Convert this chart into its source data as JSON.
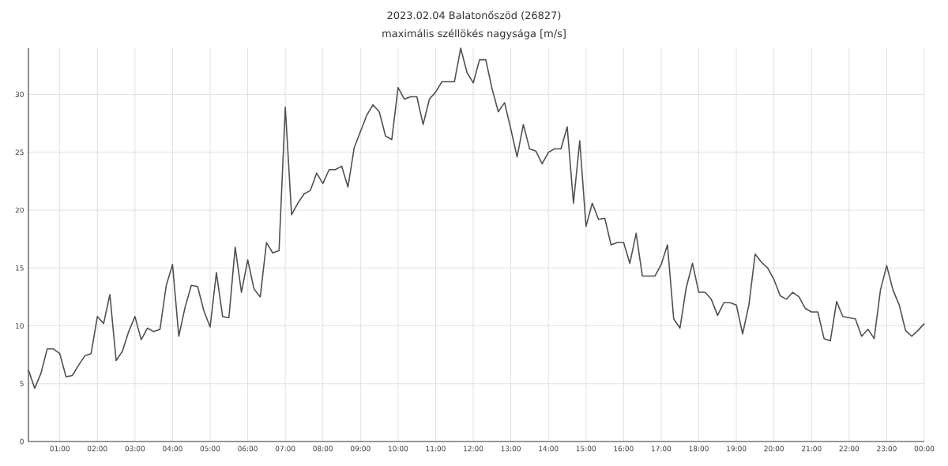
{
  "chart_data": {
    "type": "line",
    "title": "2023.02.04 Balatonőszöd (26827)",
    "subtitle": "maximális széllökés nagysága [m/s]",
    "x": [
      "2023-02-04T00:10",
      "2023-02-04T00:20",
      "2023-02-04T00:30",
      "2023-02-04T00:40",
      "2023-02-04T00:50",
      "2023-02-04T01:00",
      "2023-02-04T01:10",
      "2023-02-04T01:20",
      "2023-02-04T01:30",
      "2023-02-04T01:40",
      "2023-02-04T01:50",
      "2023-02-04T02:00",
      "2023-02-04T02:10",
      "2023-02-04T02:20",
      "2023-02-04T02:30",
      "2023-02-04T02:40",
      "2023-02-04T02:50",
      "2023-02-04T03:00",
      "2023-02-04T03:10",
      "2023-02-04T03:20",
      "2023-02-04T03:30",
      "2023-02-04T03:40",
      "2023-02-04T03:50",
      "2023-02-04T04:00",
      "2023-02-04T04:10",
      "2023-02-04T04:20",
      "2023-02-04T04:30",
      "2023-02-04T04:40",
      "2023-02-04T04:50",
      "2023-02-04T05:00",
      "2023-02-04T05:10",
      "2023-02-04T05:20",
      "2023-02-04T05:30",
      "2023-02-04T05:40",
      "2023-02-04T05:50",
      "2023-02-04T06:00",
      "2023-02-04T06:10",
      "2023-02-04T06:20",
      "2023-02-04T06:30",
      "2023-02-04T06:40",
      "2023-02-04T06:50",
      "2023-02-04T07:00",
      "2023-02-04T07:10",
      "2023-02-04T07:20",
      "2023-02-04T07:30",
      "2023-02-04T07:40",
      "2023-02-04T07:50",
      "2023-02-04T08:00",
      "2023-02-04T08:10",
      "2023-02-04T08:20",
      "2023-02-04T08:30",
      "2023-02-04T08:40",
      "2023-02-04T08:50",
      "2023-02-04T09:00",
      "2023-02-04T09:10",
      "2023-02-04T09:20",
      "2023-02-04T09:30",
      "2023-02-04T09:40",
      "2023-02-04T09:50",
      "2023-02-04T10:00",
      "2023-02-04T10:10",
      "2023-02-04T10:20",
      "2023-02-04T10:30",
      "2023-02-04T10:40",
      "2023-02-04T10:50",
      "2023-02-04T11:00",
      "2023-02-04T11:10",
      "2023-02-04T11:20",
      "2023-02-04T11:30",
      "2023-02-04T11:40",
      "2023-02-04T11:50",
      "2023-02-04T12:00",
      "2023-02-04T12:10",
      "2023-02-04T12:20",
      "2023-02-04T12:30",
      "2023-02-04T12:40",
      "2023-02-04T12:50",
      "2023-02-04T13:00",
      "2023-02-04T13:10",
      "2023-02-04T13:20",
      "2023-02-04T13:30",
      "2023-02-04T13:40",
      "2023-02-04T13:50",
      "2023-02-04T14:00",
      "2023-02-04T14:10",
      "2023-02-04T14:20",
      "2023-02-04T14:30",
      "2023-02-04T14:40",
      "2023-02-04T14:50",
      "2023-02-04T15:00",
      "2023-02-04T15:10",
      "2023-02-04T15:20",
      "2023-02-04T15:30",
      "2023-02-04T15:40",
      "2023-02-04T15:50",
      "2023-02-04T16:00",
      "2023-02-04T16:10",
      "2023-02-04T16:20",
      "2023-02-04T16:30",
      "2023-02-04T16:40",
      "2023-02-04T16:50",
      "2023-02-04T17:00",
      "2023-02-04T17:10",
      "2023-02-04T17:20",
      "2023-02-04T17:30",
      "2023-02-04T17:40",
      "2023-02-04T17:50",
      "2023-02-04T18:00",
      "2023-02-04T18:10",
      "2023-02-04T18:20",
      "2023-02-04T18:30",
      "2023-02-04T18:40",
      "2023-02-04T18:50",
      "2023-02-04T19:00",
      "2023-02-04T19:10",
      "2023-02-04T19:20",
      "2023-02-04T19:30",
      "2023-02-04T19:40",
      "2023-02-04T19:50",
      "2023-02-04T20:00",
      "2023-02-04T20:10",
      "2023-02-04T20:20",
      "2023-02-04T20:30",
      "2023-02-04T20:40",
      "2023-02-04T20:50",
      "2023-02-04T21:00",
      "2023-02-04T21:10",
      "2023-02-04T21:20",
      "2023-02-04T21:30",
      "2023-02-04T21:40",
      "2023-02-04T21:50",
      "2023-02-04T22:00",
      "2023-02-04T22:10",
      "2023-02-04T22:20",
      "2023-02-04T22:30",
      "2023-02-04T22:40",
      "2023-02-04T22:50",
      "2023-02-04T23:00",
      "2023-02-04T23:10",
      "2023-02-04T23:20",
      "2023-02-04T23:30",
      "2023-02-04T23:40",
      "2023-02-04T23:50",
      "2023-02-05T00:00"
    ],
    "series": [
      {
        "color": "#505050",
        "values": [
          6.2,
          4.6,
          5.9,
          8.0,
          8.0,
          7.6,
          5.6,
          5.7,
          6.6,
          7.4,
          7.6,
          10.8,
          10.2,
          12.7,
          7.0,
          7.8,
          9.5,
          10.8,
          8.8,
          9.8,
          9.5,
          9.7,
          13.5,
          15.3,
          9.1,
          11.6,
          13.5,
          13.4,
          11.3,
          9.9,
          14.6,
          10.8,
          10.7,
          16.8,
          12.9,
          15.7,
          13.2,
          12.5,
          17.2,
          16.3,
          16.5,
          28.9,
          19.6,
          20.6,
          21.4,
          21.7,
          23.2,
          22.3,
          23.5,
          23.5,
          23.8,
          22.0,
          25.4,
          26.8,
          28.2,
          29.1,
          28.5,
          26.4,
          26.1,
          30.6,
          29.6,
          29.8,
          29.8,
          27.4,
          29.6,
          30.2,
          31.1,
          31.1,
          31.1,
          34.0,
          31.9,
          31.0,
          33.0,
          33.0,
          30.5,
          28.5,
          29.3,
          27.0,
          24.6,
          27.4,
          25.3,
          25.1,
          24.0,
          25.0,
          25.3,
          25.3,
          27.2,
          20.6,
          26.0,
          18.6,
          20.6,
          19.2,
          19.3,
          17.0,
          17.2,
          17.2,
          15.4,
          18.0,
          14.3,
          14.3,
          14.3,
          15.3,
          17.0,
          10.6,
          9.8,
          13.3,
          15.4,
          12.9,
          12.9,
          12.3,
          10.9,
          12.0,
          12.0,
          11.8,
          9.3,
          11.8,
          16.2,
          15.5,
          15.0,
          14.0,
          12.6,
          12.3,
          12.9,
          12.5,
          11.5,
          11.2,
          11.2,
          8.9,
          8.7,
          12.1,
          10.8,
          10.7,
          10.6,
          9.1,
          9.7,
          8.9,
          13.1,
          15.2,
          13.1,
          11.8,
          9.6,
          9.1,
          9.6,
          10.2
        ]
      }
    ],
    "xlim": [
      "2023-02-04T00:10",
      "2023-02-05T00:00"
    ],
    "xticks": [
      {
        "value": "2023-02-04T01:00",
        "label": "01:00"
      },
      {
        "value": "2023-02-04T02:00",
        "label": "02:00"
      },
      {
        "value": "2023-02-04T03:00",
        "label": "03:00"
      },
      {
        "value": "2023-02-04T04:00",
        "label": "04:00"
      },
      {
        "value": "2023-02-04T05:00",
        "label": "05:00"
      },
      {
        "value": "2023-02-04T06:00",
        "label": "06:00"
      },
      {
        "value": "2023-02-04T07:00",
        "label": "07:00"
      },
      {
        "value": "2023-02-04T08:00",
        "label": "08:00"
      },
      {
        "value": "2023-02-04T09:00",
        "label": "09:00"
      },
      {
        "value": "2023-02-04T10:00",
        "label": "10:00"
      },
      {
        "value": "2023-02-04T11:00",
        "label": "11:00"
      },
      {
        "value": "2023-02-04T12:00",
        "label": "12:00"
      },
      {
        "value": "2023-02-04T13:00",
        "label": "13:00"
      },
      {
        "value": "2023-02-04T14:00",
        "label": "14:00"
      },
      {
        "value": "2023-02-04T15:00",
        "label": "15:00"
      },
      {
        "value": "2023-02-04T16:00",
        "label": "16:00"
      },
      {
        "value": "2023-02-04T17:00",
        "label": "17:00"
      },
      {
        "value": "2023-02-04T18:00",
        "label": "18:00"
      },
      {
        "value": "2023-02-04T19:00",
        "label": "19:00"
      },
      {
        "value": "2023-02-04T20:00",
        "label": "20:00"
      },
      {
        "value": "2023-02-04T21:00",
        "label": "21:00"
      },
      {
        "value": "2023-02-04T22:00",
        "label": "22:00"
      },
      {
        "value": "2023-02-04T23:00",
        "label": "23:00"
      },
      {
        "value": "2023-02-05T00:00",
        "label": "00:00"
      }
    ],
    "ylim": [
      0,
      34
    ],
    "yticks": [
      0,
      5,
      10,
      15,
      20,
      25,
      30
    ],
    "grid": true,
    "marker": "none",
    "line_style": "solid"
  }
}
